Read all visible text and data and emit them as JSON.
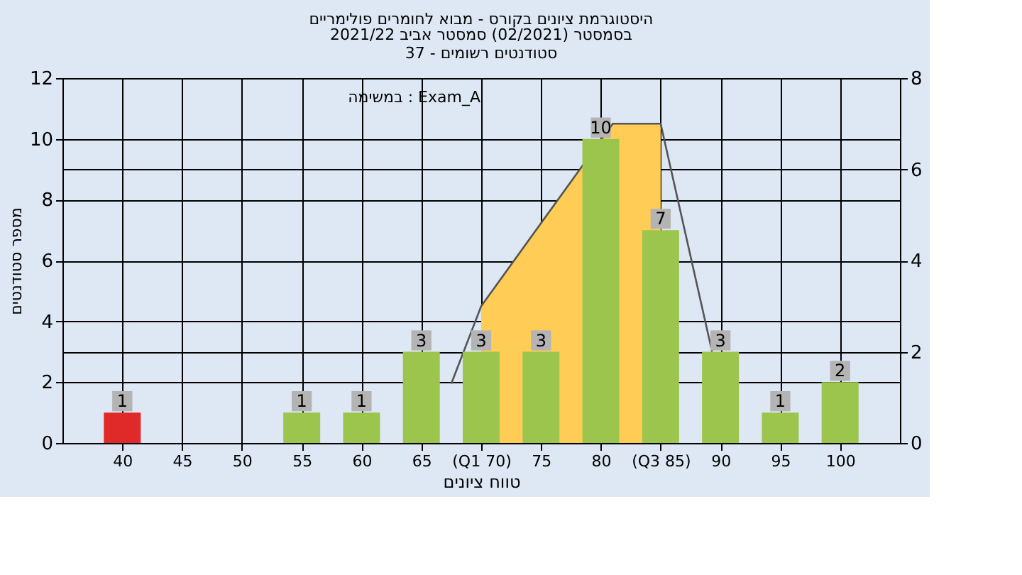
{
  "chart_data": {
    "type": "bar",
    "title": "היסטוגרמת ציונים בקורס - מבוא לחומרים פולימריים",
    "subtitle": [
      "בסמסטר  (02/2021)  סמסטר אביב 2021/22",
      "סטודנטים רשומים - 37"
    ],
    "xlabel": "טווח ציונים",
    "ylabel": "מספר סטודנטים",
    "annotations": [
      "במשימה : Exam_A"
    ],
    "x": [
      40,
      45,
      50,
      55,
      60,
      65,
      70,
      75,
      80,
      85,
      90,
      95,
      100
    ],
    "series": [
      {
        "type": "area",
        "axis": "y2",
        "color": "#ffcc55",
        "x": [
          70,
          81,
          85
        ],
        "values": [
          3.0,
          7.0,
          7.0
        ]
      },
      {
        "type": "line",
        "axis": "y2",
        "color": "#555555",
        "x": [
          67.5,
          70,
          81,
          85,
          89.3
        ],
        "values": [
          1.3,
          3.0,
          7.0,
          7.0,
          2.0
        ]
      },
      {
        "type": "bar",
        "colors": [
          "#e02a2a",
          "#9cc54e",
          "#9cc54e",
          "#9cc54e",
          "#9cc54e",
          "#9cc54e",
          "#9cc54e",
          "#9cc54e",
          "#9cc54e",
          "#9cc54e",
          "#9cc54e",
          "#9cc54e",
          "#9cc54e"
        ],
        "values": [
          1,
          0,
          0,
          1,
          1,
          3,
          3,
          3,
          10,
          7,
          3,
          1,
          2
        ],
        "value_labels": [
          "1",
          null,
          null,
          "1",
          "1",
          "3",
          "3",
          "3",
          "10",
          "7",
          "3",
          "1",
          "2"
        ]
      }
    ],
    "xlim": [
      35,
      105
    ],
    "xticks": [
      40,
      45,
      50,
      55,
      60,
      65,
      {
        "value": 70,
        "label": "(Q1 70)"
      },
      75,
      80,
      {
        "value": 85,
        "label": "(Q3 85)"
      },
      90,
      95,
      100
    ],
    "ylim": [
      0,
      12
    ],
    "yticks": [
      0,
      2,
      4,
      6,
      8,
      10,
      12
    ],
    "y2lim": [
      0,
      8
    ],
    "y2ticks": [
      0,
      2,
      4,
      6,
      8
    ],
    "grid": true,
    "legend": false
  }
}
